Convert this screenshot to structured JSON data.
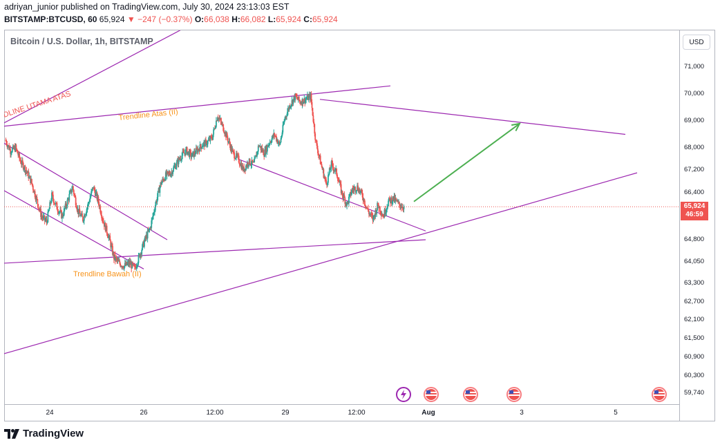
{
  "header": {
    "line1": "adriyan_junior published on TradingView.com, July 30, 2024 23:13:03 EST",
    "symbol": "BITSTAMP:BTCUSD, 60",
    "last": "65,924",
    "arrow": "▼",
    "change": "−247 (−0.37%)",
    "o_label": "O:",
    "o": "66,038",
    "h_label": "H:",
    "h": "66,082",
    "l_label": "L:",
    "l": "65,924",
    "c_label": "C:",
    "c": "65,924"
  },
  "chart_label": "Bitcoin / U.S. Dollar, 1h, BITSTAMP",
  "currency_button": "USD",
  "price_tag": {
    "price": "65,924",
    "countdown": "46:59"
  },
  "footer_brand": "TradingView",
  "annotations": {
    "utama": "DLINE UTAMA ATAS",
    "atas": "Trendline Atas (II)",
    "bawah": "Trendline Bawah (II)"
  },
  "colors": {
    "up": "#26a69a",
    "down": "#ef5350",
    "trendline": "#9c27b0",
    "annotation_orange": "#f7931a",
    "annotation_red": "#ef5350",
    "arrow": "#4caf50"
  },
  "events": [
    "lightning-icon",
    "us-flag-icon",
    "us-flag-icon",
    "us-flag-icon",
    "us-flag-icon"
  ],
  "chart_data": {
    "type": "candlestick",
    "title": "Bitcoin / U.S. Dollar, 1h, BITSTAMP",
    "y_ticks": [
      "71,000",
      "70,000",
      "69,000",
      "68,000",
      "67,200",
      "66,400",
      "64,800",
      "64,050",
      "63,300",
      "62,700",
      "62,100",
      "61,500",
      "60,900",
      "60,300",
      "59,740"
    ],
    "x_ticks": [
      "24",
      "26",
      "12:00",
      "29",
      "12:00",
      "Aug",
      "3",
      "5"
    ],
    "series": [
      {
        "name": "BTCUSD",
        "path": [
          68300,
          67900,
          68000,
          67500,
          67200,
          66800,
          66200,
          65600,
          65400,
          66300,
          65900,
          65600,
          66100,
          66600,
          65800,
          65500,
          66000,
          66600,
          66100,
          65400,
          64900,
          64200,
          64000,
          63900,
          64000,
          63800,
          64300,
          64800,
          65200,
          66000,
          66700,
          67000,
          67100,
          67400,
          67700,
          67900,
          67700,
          67900,
          68100,
          68200,
          68400,
          69200,
          68800,
          68300,
          67800,
          67600,
          67200,
          67500,
          67400,
          68100,
          67800,
          68200,
          68500,
          68100,
          69100,
          69600,
          69900,
          69700,
          69800,
          69900,
          68200,
          67400,
          66700,
          67400,
          67100,
          66400,
          66000,
          66500,
          66600,
          66300,
          65800,
          65500,
          66000,
          65600,
          66100,
          66200,
          66000,
          65924
        ]
      }
    ],
    "trendlines": [
      {
        "from": [
          "Jul 23",
          68200
        ],
        "to": [
          "Jul 26 12:00",
          64800
        ]
      },
      {
        "from": [
          "Jul 23",
          66500
        ],
        "to": [
          "Jul 26",
          63800
        ]
      },
      {
        "from": [
          "Jul 23",
          68800
        ],
        "to": [
          "Jul 31 06:00",
          70300
        ],
        "label": "Trendline Atas (II)"
      },
      {
        "from": [
          "Jul 23",
          64000
        ],
        "to": [
          "Aug 1",
          64800
        ],
        "label": "Trendline Bawah (II)"
      },
      {
        "from": [
          "Jul 23",
          61000
        ],
        "to": [
          "Aug 5 12:00",
          67100
        ]
      },
      {
        "from": [
          "Jul 23",
          68900
        ],
        "to": [
          "Jul 27 06:00",
          72800
        ],
        "label": "DLINE UTAMA ATAS"
      },
      {
        "from": [
          "Jul 29 18:00",
          69800
        ],
        "to": [
          "Aug 5 06:00",
          68500
        ]
      },
      {
        "from": [
          "Jul 28 00:00",
          67600
        ],
        "to": [
          "Aug 1",
          65100
        ]
      }
    ],
    "projection_arrow": {
      "from": [
        "Jul 31 18:00",
        66100
      ],
      "to": [
        "Aug 3",
        68900
      ]
    },
    "last_price": 65924
  }
}
